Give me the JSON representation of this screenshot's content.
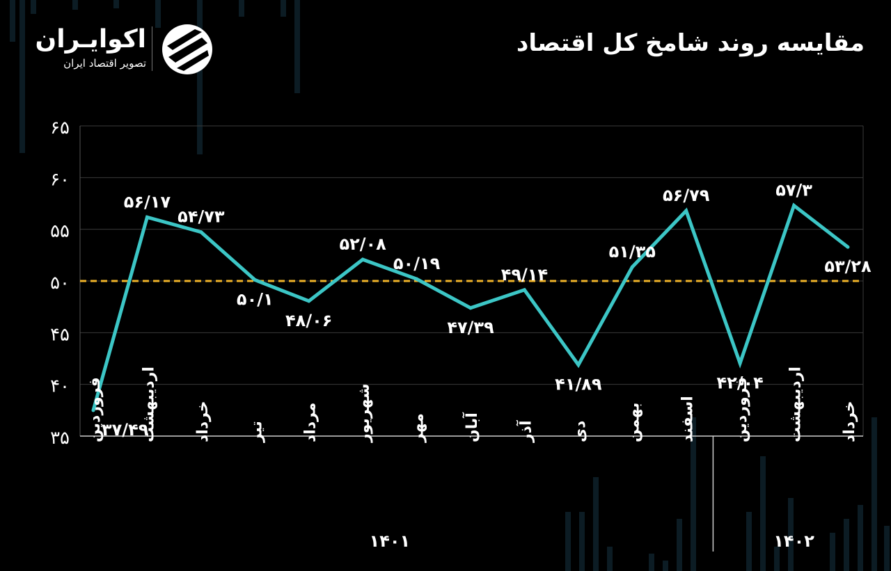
{
  "title": "مقایسه روند شامخ کل اقتصاد",
  "logo": {
    "name": "اکوایـران",
    "tagline": "تصویر اقتصاد ایران"
  },
  "colors": {
    "background": "#000000",
    "line": "#3cc6c6",
    "reference": "#f0b429",
    "grid": "#3a3a3a",
    "text": "#ffffff"
  },
  "chart_data": {
    "type": "line",
    "title": "مقایسه روند شامخ کل اقتصاد",
    "xlabel": "",
    "ylabel": "",
    "ylim": [
      35,
      65
    ],
    "y_ticks": [
      35,
      40,
      45,
      50,
      55,
      60,
      65
    ],
    "y_tick_labels": [
      "۳۵",
      "۴۰",
      "۴۵",
      "۵۰",
      "۵۵",
      "۶۰",
      "۶۵"
    ],
    "reference_line": 50,
    "grid": true,
    "legend": "none",
    "categories": [
      "فروردین",
      "اردیبهشت",
      "خرداد",
      "تیر",
      "مرداد",
      "شهریور",
      "مهر",
      "آبان",
      "آذر",
      "دی",
      "بهمن",
      "اسفند",
      "فروردین",
      "اردیبهشت",
      "خرداد"
    ],
    "values": [
      37.49,
      56.17,
      54.73,
      50.1,
      48.06,
      52.08,
      50.19,
      47.39,
      49.14,
      41.89,
      51.35,
      56.79,
      42.04,
      57.3,
      53.28
    ],
    "value_labels": [
      "۳۷/۴۹",
      "۵۶/۱۷",
      "۵۴/۷۳",
      "۵۰/۱",
      "۴۸/۰۶",
      "۵۲/۰۸",
      "۵۰/۱۹",
      "۴۷/۳۹",
      "۴۹/۱۴",
      "۴۱/۸۹",
      "۵۱/۳۵",
      "۵۶/۷۹",
      "۴۲/۰۴",
      "۵۷/۳",
      "۵۳/۲۸"
    ],
    "label_positions": [
      "below",
      "above",
      "above",
      "below",
      "below",
      "above",
      "above",
      "below",
      "above",
      "below",
      "above",
      "above",
      "below",
      "above",
      "below"
    ],
    "groups": [
      {
        "label": "۱۴۰۱",
        "start": 0,
        "end": 11
      },
      {
        "label": "۱۴۰۲",
        "start": 12,
        "end": 14
      }
    ]
  }
}
